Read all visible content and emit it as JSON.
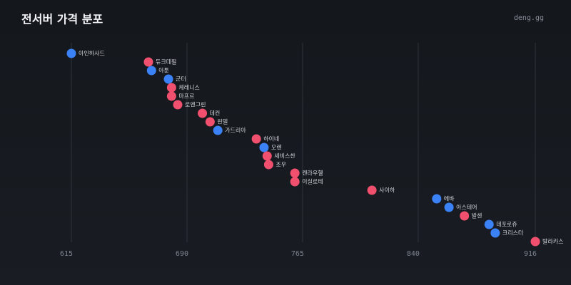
{
  "chart_data": {
    "type": "dot",
    "title": "전서버 가격 분포",
    "source": "deng.gg",
    "categories": [
      "아인하사드",
      "듀크데필",
      "아툰",
      "군터",
      "케레니스",
      "마프르",
      "로엔그린",
      "데컨",
      "린델",
      "가드리아",
      "하이네",
      "오렌",
      "세비스찬",
      "조우",
      "켄라우헬",
      "이실로테",
      "사이하",
      "에바",
      "아스테어",
      "발센",
      "데포로쥬",
      "크리스터",
      "발라카스"
    ],
    "values": [
      615,
      665,
      667,
      678,
      680,
      680,
      684,
      700,
      705,
      710,
      735,
      740,
      742,
      743,
      760,
      760,
      810,
      852,
      860,
      870,
      886,
      890,
      916
    ],
    "colors": [
      "#3b82f6",
      "#f0506e",
      "#3b82f6",
      "#3b82f6",
      "#f0506e",
      "#f0506e",
      "#f0506e",
      "#f0506e",
      "#f0506e",
      "#3b82f6",
      "#f0506e",
      "#3b82f6",
      "#f0506e",
      "#f0506e",
      "#f0506e",
      "#f0506e",
      "#f0506e",
      "#3b82f6",
      "#3b82f6",
      "#f0506e",
      "#3b82f6",
      "#3b82f6",
      "#f0506e"
    ],
    "xlim": [
      615,
      916
    ],
    "xticks": [
      615,
      690,
      765,
      840,
      916
    ],
    "grid": true
  }
}
